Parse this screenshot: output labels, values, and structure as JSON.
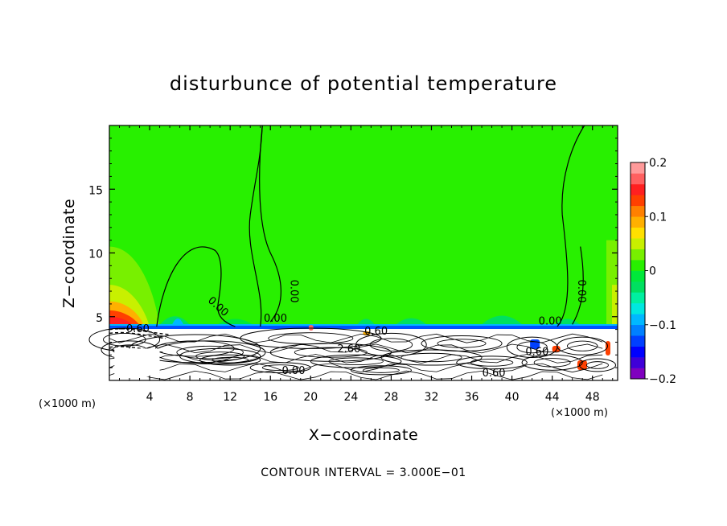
{
  "chart_data": {
    "type": "heatmap",
    "title": "disturbunce of potential temperature",
    "xlabel": "X−coordinate",
    "ylabel": "Z−coordinate",
    "x_unit_left": "(×1000 m)",
    "x_unit_right": "(×1000 m)",
    "x_ticks": [
      "4",
      "8",
      "12",
      "16",
      "20",
      "24",
      "28",
      "32",
      "36",
      "40",
      "44",
      "48"
    ],
    "x_tick_values": [
      4,
      8,
      12,
      16,
      20,
      24,
      28,
      32,
      36,
      40,
      44,
      48
    ],
    "y_ticks": [
      "5",
      "10",
      "15"
    ],
    "y_tick_values": [
      5,
      10,
      15
    ],
    "xlim": [
      0,
      50.5
    ],
    "ylim": [
      0,
      20
    ],
    "colorbar": {
      "min": -0.2,
      "max": 0.2,
      "tick_labels": [
        "0.2",
        "0.1",
        "0",
        "−0.1",
        "−0.2"
      ],
      "tick_values": [
        0.2,
        0.1,
        0,
        -0.1,
        -0.2
      ],
      "colors": [
        "#7f00bf",
        "#3f00d8",
        "#0000ff",
        "#0040ff",
        "#0080ff",
        "#00b8ff",
        "#00e8e0",
        "#00f0a0",
        "#00e060",
        "#00e83a",
        "#28f000",
        "#78f000",
        "#c8f000",
        "#ffe000",
        "#ffb000",
        "#ff8000",
        "#ff4000",
        "#ff2020",
        "#ff6060",
        "#ff9a9a"
      ]
    },
    "contour_labels": [
      "0.00",
      "0.00",
      "0.00",
      "0.00",
      "−0.60",
      "0.00",
      "2.60",
      "0.00",
      "0.60",
      "0.60",
      "0.60"
    ],
    "grid": false,
    "legend": "colorbar right"
  },
  "footer": "CONTOUR INTERVAL = 3.000E−01"
}
